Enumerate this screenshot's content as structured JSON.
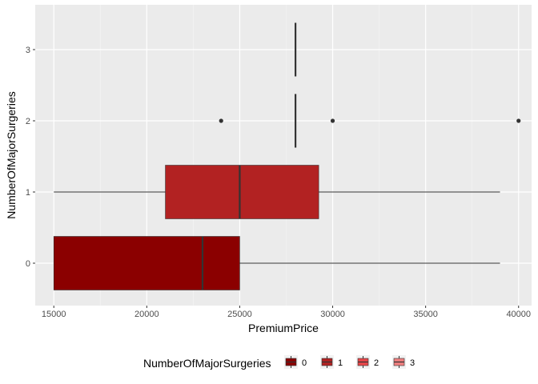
{
  "chart_data": {
    "type": "boxplot",
    "orientation": "horizontal",
    "xlabel": "PremiumPrice",
    "ylabel": "NumberOfMajorSurgeries",
    "xlim": [
      14000,
      40700
    ],
    "x_ticks": [
      15000,
      20000,
      25000,
      30000,
      35000,
      40000
    ],
    "categories": [
      "0",
      "1",
      "2",
      "3"
    ],
    "grid": true,
    "legend": {
      "title": "NumberOfMajorSurgeries",
      "position": "bottom",
      "entries": [
        "0",
        "1",
        "2",
        "3"
      ]
    },
    "series": [
      {
        "category": "0",
        "min": 15000,
        "q1": 15000,
        "median": 23000,
        "q3": 25000,
        "max": 39000,
        "outliers": [],
        "color": "#8B0000"
      },
      {
        "category": "1",
        "min": 15000,
        "q1": 21000,
        "median": 25000,
        "q3": 29250,
        "max": 39000,
        "outliers": [],
        "color": "#B22222"
      },
      {
        "category": "2",
        "min": 28000,
        "q1": 28000,
        "median": 28000,
        "q3": 28000,
        "max": 28000,
        "outliers": [
          24000,
          30000,
          40000
        ],
        "color": "#E8474A"
      },
      {
        "category": "3",
        "min": 28000,
        "q1": 28000,
        "median": 28000,
        "q3": 28000,
        "max": 28000,
        "outliers": [],
        "color": "#F08080"
      }
    ]
  }
}
